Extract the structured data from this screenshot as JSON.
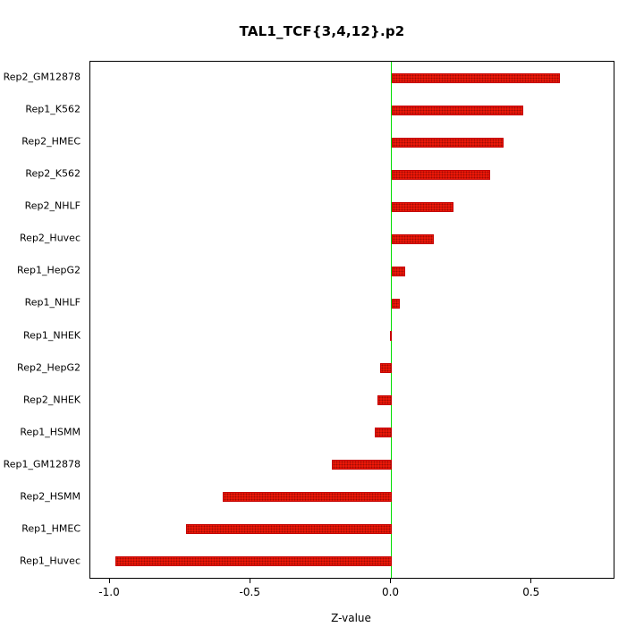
{
  "title": "TAL1_TCF{3,4,12}.p2",
  "chart_data": {
    "type": "bar",
    "orientation": "horizontal",
    "title": "TAL1_TCF{3,4,12}.p2",
    "xlabel": "Z-value",
    "ylabel": "",
    "categories": [
      "Rep2_GM12878",
      "Rep1_K562",
      "Rep2_HMEC",
      "Rep2_K562",
      "Rep2_NHLF",
      "Rep2_Huvec",
      "Rep1_HepG2",
      "Rep1_NHLF",
      "Rep1_NHEK",
      "Rep2_HepG2",
      "Rep2_NHEK",
      "Rep1_HSMM",
      "Rep1_GM12878",
      "Rep2_HSMM",
      "Rep1_HMEC",
      "Rep1_Huvec"
    ],
    "values": [
      0.6,
      0.47,
      0.4,
      0.35,
      0.22,
      0.15,
      0.05,
      0.03,
      -0.005,
      -0.04,
      -0.05,
      -0.06,
      -0.21,
      -0.6,
      -0.73,
      -0.98
    ],
    "xticks": [
      -1.0,
      -0.5,
      0.0,
      0.5
    ],
    "xtick_labels": [
      "-1.0",
      "-0.5",
      "0.0",
      "0.5"
    ],
    "xlim": [
      -1.07,
      0.79
    ],
    "grid": false,
    "legend": "none",
    "bar_color": "#f21808",
    "bar_border_color": "#c40000",
    "zero_line_color": "#00dd00"
  }
}
